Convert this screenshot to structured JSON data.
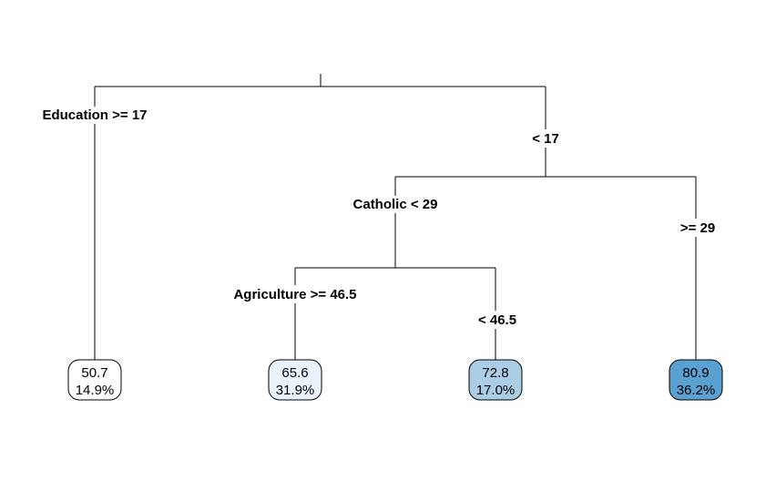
{
  "tree": {
    "splits": [
      {
        "id": "education",
        "left_label": "Education >= 17",
        "right_label": "< 17"
      },
      {
        "id": "catholic",
        "left_label": "Catholic < 29",
        "right_label": ">= 29"
      },
      {
        "id": "agriculture",
        "left_label": "Agriculture >= 46.5",
        "right_label": "< 46.5"
      }
    ],
    "leaves": [
      {
        "value": "50.7",
        "percent": "14.9%",
        "fill": "#ffffff"
      },
      {
        "value": "65.6",
        "percent": "31.9%",
        "fill": "#eaf3fb"
      },
      {
        "value": "72.8",
        "percent": "17.0%",
        "fill": "#abcde6"
      },
      {
        "value": "80.9",
        "percent": "36.2%",
        "fill": "#5aa1d1"
      }
    ]
  }
}
